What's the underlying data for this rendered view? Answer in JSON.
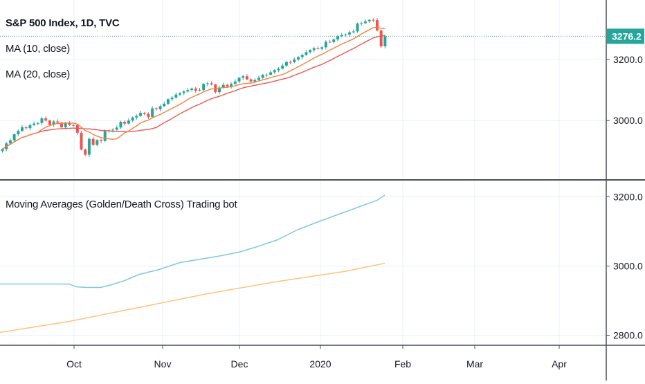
{
  "colors": {
    "up": "#26a69a",
    "down": "#ef5350",
    "ma10": "#f57f3b",
    "ma20": "#ef5350",
    "bot_blue": "#7ec8e3",
    "bot_orange": "#ffc27a",
    "grid": "#e6f0f8",
    "price_line": "#26a69a",
    "axis_text": "#131722",
    "separator": "#4a4e59"
  },
  "legend": {
    "title": "S&P 500 Index, 1D, TVC",
    "ma10": "MA (10, close)",
    "ma20": "MA (20, close)",
    "indicator": "Moving Averages (Golden/Death Cross) Trading bot"
  },
  "price_badge": {
    "label": "3276.2",
    "value": 3276.2
  },
  "chart_data": [
    {
      "type": "candlestick",
      "title": "S&P 500 Index, 1D, TVC",
      "ylim": [
        2810,
        3395
      ],
      "y_ticks": [
        "3000.0",
        "3200.0"
      ],
      "y_tick_values": [
        3000,
        3200
      ],
      "x_ticks": [
        "Oct",
        "Nov",
        "Dec",
        "2020",
        "Feb",
        "Mar",
        "Apr"
      ],
      "grid": true,
      "start": 2900,
      "closes": [
        2906,
        2925,
        2935,
        2955,
        2966,
        2978,
        2975,
        2985,
        2990,
        2992,
        3007,
        3000,
        2986,
        2997,
        2993,
        2978,
        2991,
        2985,
        2985,
        2960,
        2905,
        2888,
        2940,
        2920,
        2936,
        2933,
        2965,
        2968,
        2970,
        2977,
        2996,
        2990,
        3000,
        3010,
        3015,
        3025,
        3022,
        3012,
        3040,
        3037,
        3047,
        3055,
        3070,
        3075,
        3085,
        3090,
        3095,
        3100,
        3105,
        3098,
        3100,
        3120,
        3122,
        3118,
        3093,
        3108,
        3117,
        3112,
        3120,
        3128,
        3140,
        3145,
        3135,
        3128,
        3133,
        3140,
        3150,
        3150,
        3158,
        3165,
        3170,
        3180,
        3192,
        3191,
        3200,
        3208,
        3215,
        3224,
        3231,
        3237,
        3235,
        3240,
        3258,
        3257,
        3266,
        3276,
        3280,
        3282,
        3289,
        3292,
        3318,
        3319,
        3325,
        3330,
        3329,
        3295,
        3243,
        3276
      ],
      "series": [
        {
          "name": "MA (10, close)"
        },
        {
          "name": "MA (20, close)"
        }
      ]
    },
    {
      "type": "line",
      "title": "Moving Averages (Golden/Death Cross) Trading bot",
      "ylim": [
        2775,
        3245
      ],
      "y_ticks": [
        "2800.0",
        "3000.0",
        "3200.0"
      ],
      "y_tick_values": [
        2800,
        3000,
        3200
      ],
      "x_ticks": [
        "Oct",
        "Nov",
        "Dec",
        "2020",
        "Feb",
        "Mar",
        "Apr"
      ],
      "grid": true,
      "series": [
        {
          "x": [
            0,
            100,
            110,
            125,
            145,
            160,
            180,
            200,
            230,
            260,
            290,
            320,
            345,
            370,
            400,
            430,
            460,
            490,
            520,
            545,
            556
          ],
          "y": [
            2948,
            2948,
            2940,
            2938,
            2938,
            2945,
            2958,
            2975,
            2990,
            3010,
            3020,
            3030,
            3040,
            3055,
            3075,
            3105,
            3128,
            3150,
            3172,
            3190,
            3205
          ]
        },
        {
          "x": [
            0,
            100,
            200,
            300,
            400,
            500,
            556
          ],
          "y": [
            2808,
            2840,
            2880,
            2920,
            2955,
            2985,
            3008
          ]
        }
      ]
    }
  ]
}
